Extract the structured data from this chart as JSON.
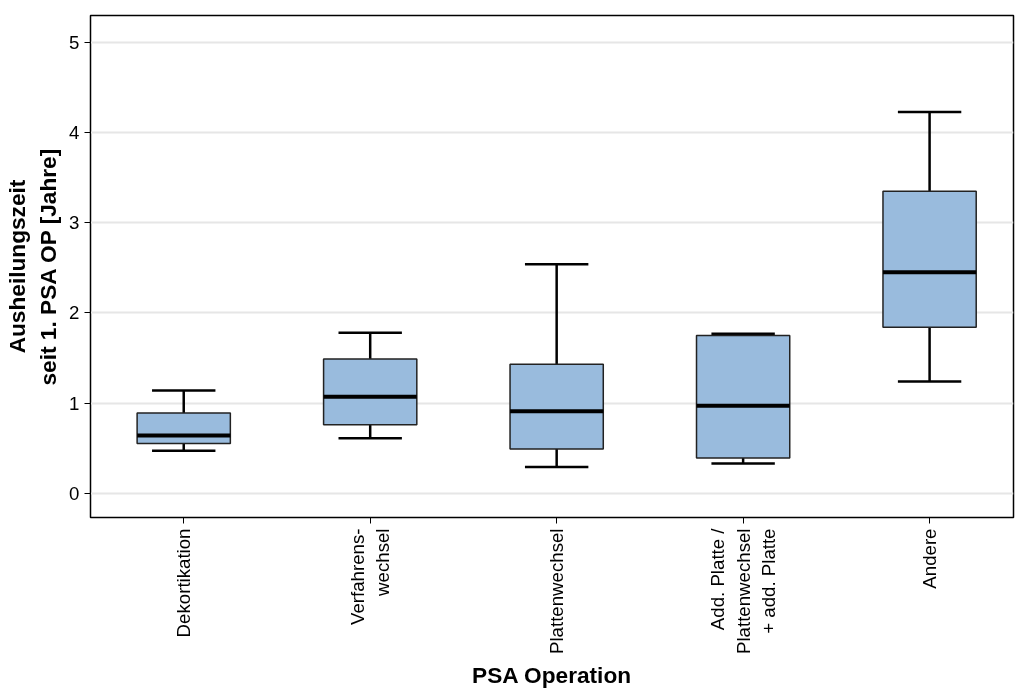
{
  "chart_data": {
    "type": "box",
    "xlabel": "PSA Operation",
    "ylabel": "Ausheilungszeit\nseit 1. PSA OP [Jahre]",
    "categories": [
      "Dekortikation",
      "Verfahrens-\nwechsel",
      "Plattenwechsel",
      "Add. Platte /\nPlattenwechsel\n+ add. Platte",
      "Andere"
    ],
    "series": [
      {
        "color": "#99bbdd",
        "boxes": [
          {
            "low": 0.47,
            "q1": 0.55,
            "median": 0.64,
            "q3": 0.89,
            "high": 1.14
          },
          {
            "low": 0.61,
            "q1": 0.76,
            "median": 1.07,
            "q3": 1.49,
            "high": 1.78
          },
          {
            "low": 0.29,
            "q1": 0.49,
            "median": 0.91,
            "q3": 1.43,
            "high": 2.54
          },
          {
            "low": 0.33,
            "q1": 0.39,
            "median": 0.97,
            "q3": 1.75,
            "high": 1.77
          },
          {
            "low": 1.24,
            "q1": 1.84,
            "median": 2.45,
            "q3": 3.35,
            "high": 4.23
          }
        ]
      }
    ],
    "ylim": [
      -0.27,
      5.3
    ],
    "yticks": [
      0,
      1,
      2,
      3,
      4,
      5
    ],
    "grid": "y"
  }
}
